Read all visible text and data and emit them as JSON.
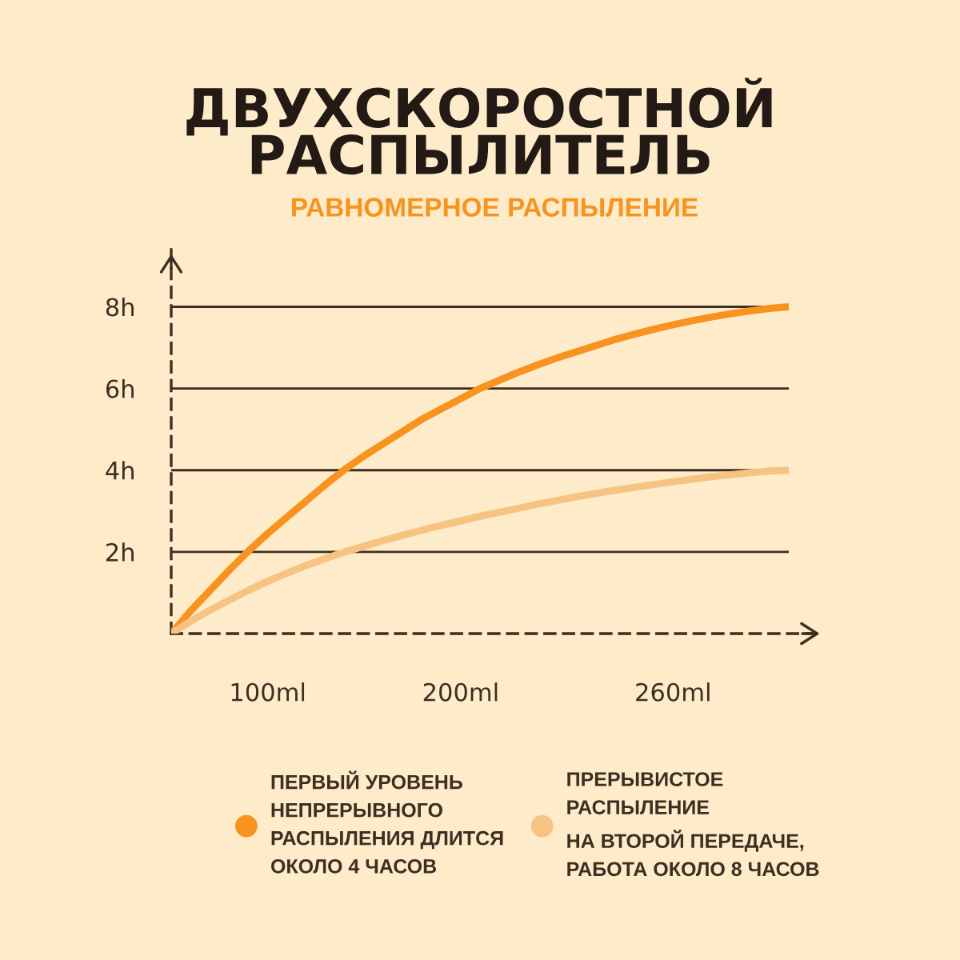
{
  "chart_data": {
    "type": "line",
    "title": "ДВУХСКОРОСТНОЙ\nРАСПЫЛИТЕЛЬ",
    "subtitle": "РАВНОМЕРНОЕ РАСПЫЛЕНИЕ",
    "categories": [
      null,
      null,
      null,
      null,
      null,
      "100ml",
      null,
      null,
      null,
      null,
      null,
      null,
      null,
      null,
      null,
      "200ml",
      null,
      null,
      null,
      null,
      null,
      null,
      null,
      null,
      null,
      null,
      "260ml",
      null,
      null,
      null,
      null,
      null,
      null
    ],
    "series": [
      {
        "name": "ПЕРВЫЙ УРОВЕНЬ\nНЕПРЕРЫВНОГО\nРАСПЫЛЕНИЯ ДЛИТСЯ\nОКОЛО 4 ЧАСОВ",
        "color": "#f7931e",
        "values": [
          0,
          0.55,
          1.05,
          1.55,
          2.02,
          2.45,
          2.85,
          3.25,
          3.65,
          4.02,
          4.35,
          4.65,
          4.95,
          5.25,
          5.5,
          5.75,
          6.0,
          6.2,
          6.4,
          6.58,
          6.75,
          6.9,
          7.05,
          7.2,
          7.33,
          7.45,
          7.56,
          7.66,
          7.75,
          7.83,
          7.9,
          7.96,
          8.0
        ]
      },
      {
        "name": "ПРЕРЫВИСТОЕ\nРАСПЫЛЕНИЕ\nНА ВТОРОЙ ПЕРЕДАЧЕ,\nРАБОТА ОКОЛО 8 ЧАСОВ",
        "color": "#f6c383",
        "values": [
          0,
          0.3,
          0.57,
          0.82,
          1.06,
          1.28,
          1.48,
          1.67,
          1.84,
          2.0,
          2.14,
          2.28,
          2.41,
          2.53,
          2.65,
          2.76,
          2.87,
          2.97,
          3.07,
          3.17,
          3.26,
          3.35,
          3.43,
          3.51,
          3.58,
          3.65,
          3.72,
          3.78,
          3.84,
          3.89,
          3.94,
          3.98,
          4.0
        ]
      }
    ],
    "ylim": [
      0,
      9.4
    ],
    "yticks": [
      {
        "value": 2,
        "label": "2h"
      },
      {
        "value": 4,
        "label": "4h"
      },
      {
        "value": 6,
        "label": "6h"
      },
      {
        "value": 8,
        "label": "8h"
      }
    ],
    "grid": "y",
    "legend": "bottom",
    "line_style": "solid"
  }
}
